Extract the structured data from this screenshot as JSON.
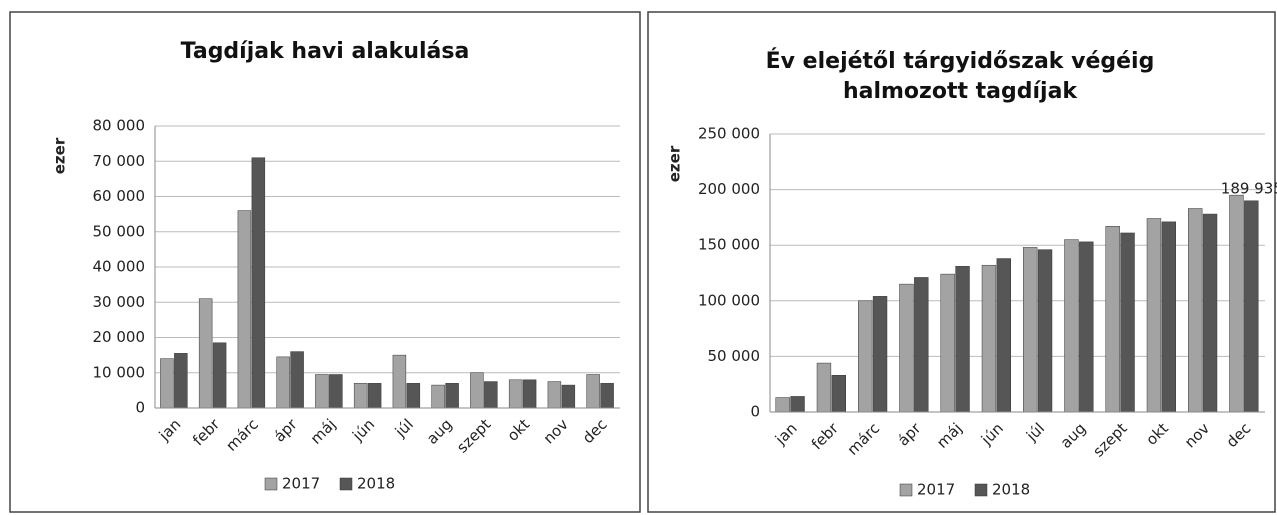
{
  "chart_data": [
    {
      "type": "bar",
      "title": [
        "Tagdíjak havi alakulása"
      ],
      "y_label": "ezer",
      "categories": [
        "jan",
        "febr",
        "márc",
        "ápr",
        "máj",
        "jún",
        "júl",
        "aug",
        "szept",
        "okt",
        "nov",
        "dec"
      ],
      "series": [
        {
          "name": "2017",
          "color": "#a3a3a3",
          "values": [
            14000,
            31000,
            56000,
            14500,
            9500,
            7000,
            15000,
            6500,
            10000,
            8000,
            7500,
            9500
          ]
        },
        {
          "name": "2018",
          "color": "#565656",
          "values": [
            15500,
            18500,
            71000,
            16000,
            9500,
            7000,
            7000,
            7000,
            7500,
            8000,
            6500,
            7000
          ]
        }
      ],
      "ylim": [
        0,
        80000
      ],
      "yticks": [
        0,
        {
          "value": 10000,
          "label": "10 000"
        },
        {
          "value": 20000,
          "label": "20 000"
        },
        {
          "value": 30000,
          "label": "30 000"
        },
        {
          "value": 40000,
          "label": "40 000"
        },
        {
          "value": 50000,
          "label": "50 000"
        },
        {
          "value": 60000,
          "label": "60 000"
        },
        {
          "value": 70000,
          "label": "70 000"
        },
        {
          "value": 80000,
          "label": "80 000"
        }
      ],
      "grid": true,
      "legend": "bottom"
    },
    {
      "type": "bar",
      "title": [
        "Év elejétől tárgyidőszak végéig",
        "halmozott tagdíjak"
      ],
      "y_label": "ezer",
      "categories": [
        "jan",
        "febr",
        "márc",
        "ápr",
        "máj",
        "jún",
        "júl",
        "aug",
        "szept",
        "okt",
        "nov",
        "dec"
      ],
      "series": [
        {
          "name": "2017",
          "color": "#a3a3a3",
          "values": [
            13000,
            44000,
            100000,
            115000,
            124000,
            132000,
            148000,
            155000,
            167000,
            174000,
            183000,
            195000
          ]
        },
        {
          "name": "2018",
          "color": "#565656",
          "values": [
            14000,
            33000,
            104000,
            121000,
            131000,
            138000,
            146000,
            153000,
            161000,
            171000,
            178000,
            189935
          ],
          "value_labels": [
            null,
            null,
            null,
            null,
            null,
            null,
            null,
            null,
            null,
            null,
            null,
            "189 935"
          ]
        }
      ],
      "ylim": [
        0,
        250000
      ],
      "yticks": [
        0,
        {
          "value": 50000,
          "label": "50 000"
        },
        {
          "value": 100000,
          "label": "100 000"
        },
        {
          "value": 150000,
          "label": "150 000"
        },
        {
          "value": 200000,
          "label": "200 000"
        },
        {
          "value": 250000,
          "label": "250 000"
        }
      ],
      "grid": true,
      "legend": "bottom"
    }
  ]
}
